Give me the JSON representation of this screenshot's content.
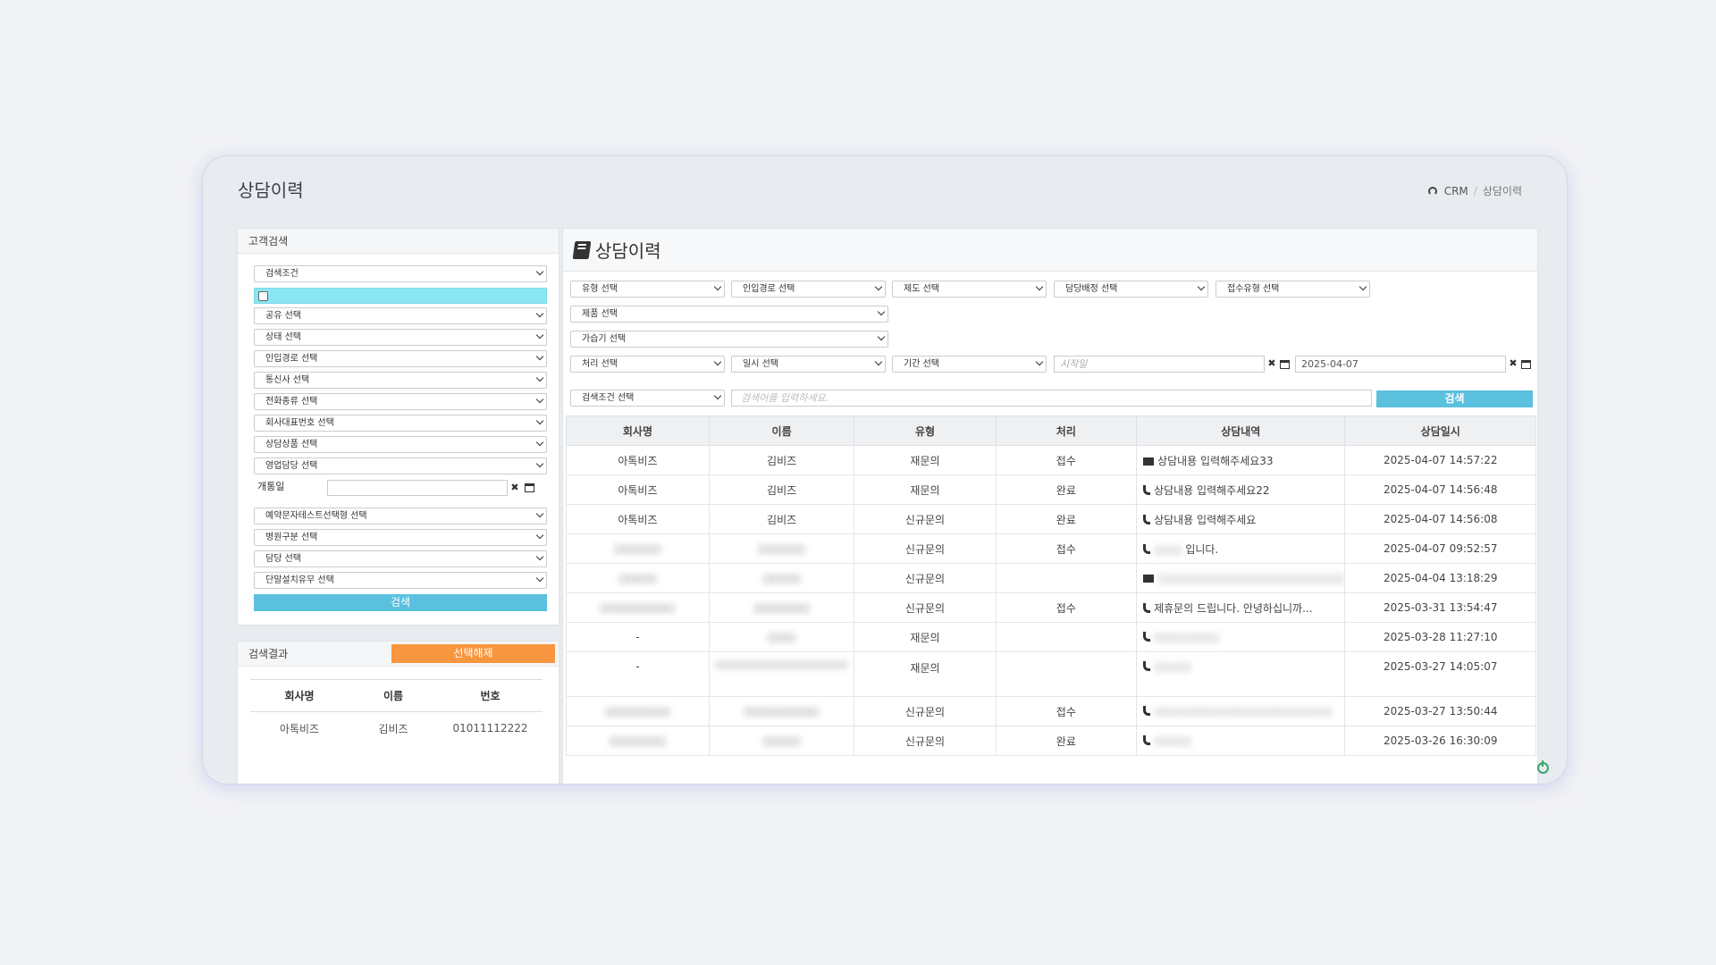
{
  "page": {
    "title": "상담이력"
  },
  "breadcrumb": {
    "root": "CRM",
    "sep": "/",
    "current": "상담이력"
  },
  "left": {
    "search_panel_title": "고객검색",
    "selects": [
      "검색조건",
      "공유 선택",
      "상태 선택",
      "인입경로 선택",
      "통신사 선택",
      "전화종류 선택",
      "회사대표번호 선택",
      "상담상품 선택",
      "영업담당 선택"
    ],
    "open_date_label": "개통일",
    "selects2": [
      "예약문자테스트선택형 선택",
      "병원구분 선택",
      "담당 선택",
      "단말설치유무 선택"
    ],
    "search_button": "검색",
    "result_panel_title": "검색결과",
    "deselect_button": "선택해제",
    "result_headers": [
      "회사명",
      "이름",
      "번호"
    ],
    "result_rows": [
      {
        "company": "아톡비즈",
        "name": "김비즈",
        "number": "01011112222"
      }
    ]
  },
  "main": {
    "title": "상담이력",
    "filters_row1": [
      "유형 선택",
      "인입경로 선택",
      "제도 선택",
      "담당배정 선택",
      "접수유형 선택"
    ],
    "product_select": "제품 선택",
    "humidifier_select": "가습기 선택",
    "filters_row4": [
      "처리 선택",
      "일시 선택",
      "기간 선택"
    ],
    "start_date_placeholder": "시작일",
    "end_date_value": "2025-04-07",
    "search_condition": "검색조건 선택",
    "search_placeholder": "검색어를 입력하세요.",
    "search_button": "검색",
    "table_headers": [
      "회사명",
      "이름",
      "유형",
      "처리",
      "상담내역",
      "상담일시"
    ],
    "rows": [
      {
        "company": "아톡비즈",
        "name": "김비즈",
        "type": "재문의",
        "status": "접수",
        "icon": "envelope-icon",
        "content": "상담내용 입력해주세요33",
        "datetime": "2025-04-07 14:57:22"
      },
      {
        "company": "아톡비즈",
        "name": "김비즈",
        "type": "재문의",
        "status": "완료",
        "icon": "phone-icon",
        "content": "상담내용 입력해주세요22",
        "datetime": "2025-04-07 14:56:48"
      },
      {
        "company": "아톡비즈",
        "name": "김비즈",
        "type": "신규문의",
        "status": "완료",
        "icon": "phone-icon",
        "content": "상담내용 입력해주세요",
        "datetime": "2025-04-07 14:56:08"
      },
      {
        "company": "○○○○○",
        "name": "○○○○○",
        "type": "신규문의",
        "status": "접수",
        "icon": "phone-icon",
        "content_blur": "○○○",
        "content": "입니다.",
        "datetime": "2025-04-07 09:52:57"
      },
      {
        "company": "○○○○",
        "name": "○○○○",
        "type": "신규문의",
        "status": "",
        "icon": "envelope-icon",
        "content_blur": "○○○○○○○○○○○○○○○○○○○○",
        "content": "",
        "datetime": "2025-04-04 13:18:29"
      },
      {
        "company": "○○○○○○○○",
        "name": "○○○○○○",
        "type": "신규문의",
        "status": "접수",
        "icon": "phone-icon",
        "content": "제휴문의 드립니다. 안녕하십니까...",
        "datetime": "2025-03-31 13:54:47"
      },
      {
        "company": "-",
        "name": "○○○",
        "type": "재문의",
        "status": "",
        "icon": "phone-icon",
        "content_blur": "○○○○○○○",
        "content": "",
        "datetime": "2025-03-28 11:27:10"
      },
      {
        "company": "-",
        "name": "○○○○○○○○○○○○○○○○○",
        "type": "재문의",
        "status": "",
        "icon": "phone-icon",
        "content_blur": "○○○○",
        "content": "",
        "datetime": "2025-03-27 14:05:07",
        "tall": true
      },
      {
        "company": "○○○○○○○",
        "name": "○○○○○○○○",
        "type": "신규문의",
        "status": "접수",
        "icon": "phone-icon",
        "content_blur": "○○○○○○○○○○○○○○○○○○○",
        "content": "",
        "datetime": "2025-03-27 13:50:44"
      },
      {
        "company": "○○○○○○",
        "name": "○○○○",
        "type": "신규문의",
        "status": "완료",
        "icon": "phone-icon",
        "content_blur": "○○○○",
        "content": "",
        "datetime": "2025-03-26 16:30:09"
      }
    ]
  }
}
